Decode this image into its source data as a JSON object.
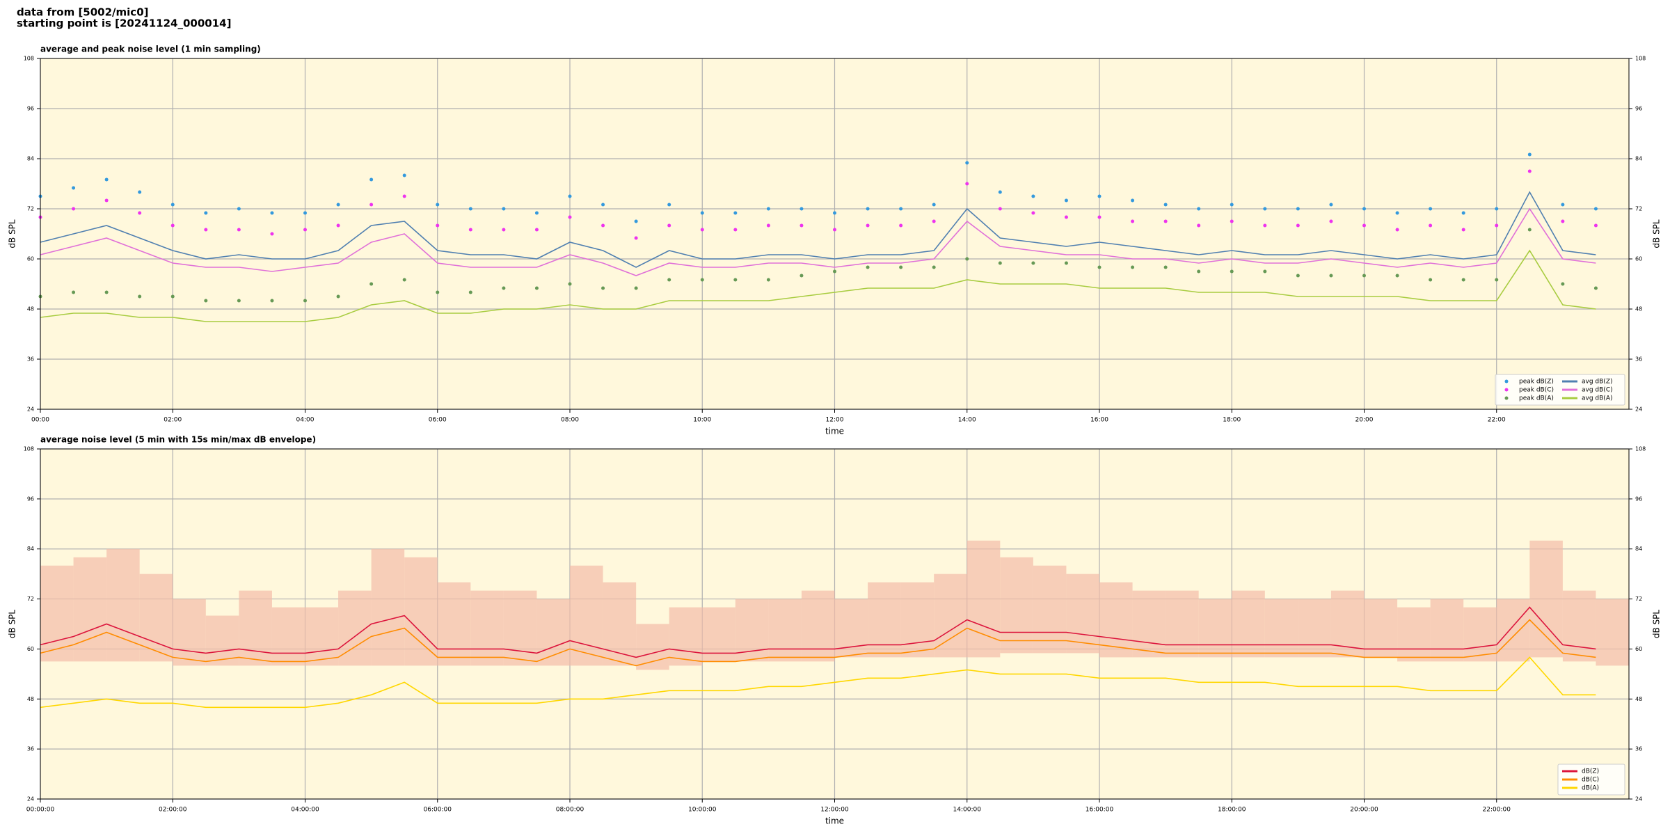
{
  "header": {
    "line1": "data from [5002/mic0]",
    "line2": "starting point is [20241124_000014]"
  },
  "chart_data": [
    {
      "type": "line",
      "title": "average and peak noise level (1 min sampling)",
      "xlabel": "time",
      "ylabel": "dB SPL",
      "background": "#fff8dc",
      "grid": true,
      "legend": "lower right",
      "legend_ncol": 2,
      "xlim": [
        0,
        24
      ],
      "ylim": [
        24,
        108
      ],
      "yticks": [
        24,
        36,
        48,
        60,
        72,
        84,
        96,
        108
      ],
      "xticks": [
        {
          "value": 0,
          "label": "00:00"
        },
        {
          "value": 2,
          "label": "02:00"
        },
        {
          "value": 4,
          "label": "04:00"
        },
        {
          "value": 6,
          "label": "06:00"
        },
        {
          "value": 8,
          "label": "08:00"
        },
        {
          "value": 10,
          "label": "10:00"
        },
        {
          "value": 12,
          "label": "12:00"
        },
        {
          "value": 14,
          "label": "14:00"
        },
        {
          "value": 16,
          "label": "16:00"
        },
        {
          "value": 18,
          "label": "18:00"
        },
        {
          "value": 20,
          "label": "20:00"
        },
        {
          "value": 22,
          "label": "22:00"
        }
      ],
      "x": [
        0,
        0.5,
        1,
        1.5,
        2,
        2.5,
        3,
        3.5,
        4,
        4.5,
        5,
        5.5,
        6,
        6.5,
        7,
        7.5,
        8,
        8.5,
        9,
        9.5,
        10,
        10.5,
        11,
        11.5,
        12,
        12.5,
        13,
        13.5,
        14,
        14.5,
        15,
        15.5,
        16,
        16.5,
        17,
        17.5,
        18,
        18.5,
        19,
        19.5,
        20,
        20.5,
        21,
        21.5,
        22,
        22.5,
        23,
        23.5
      ],
      "series": [
        {
          "name": "peak dB(Z)",
          "marker": "dot",
          "color": "#3399dd",
          "values": [
            75,
            77,
            79,
            76,
            73,
            71,
            72,
            71,
            71,
            73,
            79,
            80,
            73,
            72,
            72,
            71,
            75,
            73,
            69,
            73,
            71,
            71,
            72,
            72,
            71,
            72,
            72,
            73,
            83,
            76,
            75,
            74,
            75,
            74,
            73,
            72,
            73,
            72,
            72,
            73,
            72,
            71,
            72,
            71,
            72,
            85,
            73,
            72
          ]
        },
        {
          "name": "peak dB(C)",
          "marker": "dot",
          "color": "#ee33ee",
          "values": [
            70,
            72,
            74,
            71,
            68,
            67,
            67,
            66,
            67,
            68,
            73,
            75,
            68,
            67,
            67,
            67,
            70,
            68,
            65,
            68,
            67,
            67,
            68,
            68,
            67,
            68,
            68,
            69,
            78,
            72,
            71,
            70,
            70,
            69,
            69,
            68,
            69,
            68,
            68,
            69,
            68,
            67,
            68,
            67,
            68,
            81,
            69,
            68
          ]
        },
        {
          "name": "peak dB(A)",
          "marker": "dot",
          "color": "#669955",
          "values": [
            51,
            52,
            52,
            51,
            51,
            50,
            50,
            50,
            50,
            51,
            54,
            55,
            52,
            52,
            53,
            53,
            54,
            53,
            53,
            55,
            55,
            55,
            55,
            56,
            57,
            58,
            58,
            58,
            60,
            59,
            59,
            59,
            58,
            58,
            58,
            57,
            57,
            57,
            56,
            56,
            56,
            56,
            55,
            55,
            55,
            67,
            54,
            53
          ]
        },
        {
          "name": "avg dB(Z)",
          "marker": "line",
          "color": "#4f7fb0",
          "values": [
            64,
            66,
            68,
            65,
            62,
            60,
            61,
            60,
            60,
            62,
            68,
            69,
            62,
            61,
            61,
            60,
            64,
            62,
            58,
            62,
            60,
            60,
            61,
            61,
            60,
            61,
            61,
            62,
            72,
            65,
            64,
            63,
            64,
            63,
            62,
            61,
            62,
            61,
            61,
            62,
            61,
            60,
            61,
            60,
            61,
            76,
            62,
            61
          ]
        },
        {
          "name": "avg dB(C)",
          "marker": "line",
          "color": "#e070d8",
          "values": [
            61,
            63,
            65,
            62,
            59,
            58,
            58,
            57,
            58,
            59,
            64,
            66,
            59,
            58,
            58,
            58,
            61,
            59,
            56,
            59,
            58,
            58,
            59,
            59,
            58,
            59,
            59,
            60,
            69,
            63,
            62,
            61,
            61,
            60,
            60,
            59,
            60,
            59,
            59,
            60,
            59,
            58,
            59,
            58,
            59,
            72,
            60,
            59
          ]
        },
        {
          "name": "avg dB(A)",
          "marker": "line",
          "color": "#a8cc40",
          "values": [
            46,
            47,
            47,
            46,
            46,
            45,
            45,
            45,
            45,
            46,
            49,
            50,
            47,
            47,
            48,
            48,
            49,
            48,
            48,
            50,
            50,
            50,
            50,
            51,
            52,
            53,
            53,
            53,
            55,
            54,
            54,
            54,
            53,
            53,
            53,
            52,
            52,
            52,
            51,
            51,
            51,
            51,
            50,
            50,
            50,
            62,
            49,
            48
          ]
        }
      ]
    },
    {
      "type": "line",
      "title": "average noise level (5 min with 15s min/max dB envelope)",
      "xlabel": "time",
      "ylabel": "dB SPL",
      "background": "#fff8dc",
      "grid": true,
      "legend": "lower right",
      "legend_ncol": 1,
      "xlim": [
        0,
        24
      ],
      "ylim": [
        24,
        108
      ],
      "yticks": [
        24,
        36,
        48,
        60,
        72,
        84,
        96,
        108
      ],
      "xticks": [
        {
          "value": 0,
          "label": "00:00:00"
        },
        {
          "value": 2,
          "label": "02:00:00"
        },
        {
          "value": 4,
          "label": "04:00:00"
        },
        {
          "value": 6,
          "label": "06:00:00"
        },
        {
          "value": 8,
          "label": "08:00:00"
        },
        {
          "value": 10,
          "label": "10:00:00"
        },
        {
          "value": 12,
          "label": "12:00:00"
        },
        {
          "value": 14,
          "label": "14:00:00"
        },
        {
          "value": 16,
          "label": "16:00:00"
        },
        {
          "value": 18,
          "label": "18:00:00"
        },
        {
          "value": 20,
          "label": "20:00:00"
        },
        {
          "value": 22,
          "label": "22:00:00"
        }
      ],
      "x": [
        0,
        0.5,
        1,
        1.5,
        2,
        2.5,
        3,
        3.5,
        4,
        4.5,
        5,
        5.5,
        6,
        6.5,
        7,
        7.5,
        8,
        8.5,
        9,
        9.5,
        10,
        10.5,
        11,
        11.5,
        12,
        12.5,
        13,
        13.5,
        14,
        14.5,
        15,
        15.5,
        16,
        16.5,
        17,
        17.5,
        18,
        18.5,
        19,
        19.5,
        20,
        20.5,
        21,
        21.5,
        22,
        22.5,
        23,
        23.5
      ],
      "envelope": {
        "color": "#f4bca8",
        "min": [
          57,
          57,
          57,
          57,
          56,
          56,
          56,
          56,
          56,
          56,
          56,
          56,
          56,
          56,
          56,
          56,
          56,
          56,
          55,
          56,
          57,
          57,
          57,
          57,
          58,
          58,
          58,
          58,
          58,
          59,
          59,
          59,
          58,
          58,
          58,
          58,
          58,
          58,
          58,
          58,
          58,
          57,
          57,
          57,
          57,
          58,
          57,
          56
        ],
        "max": [
          80,
          82,
          84,
          78,
          72,
          68,
          74,
          70,
          70,
          74,
          84,
          82,
          76,
          74,
          74,
          72,
          80,
          76,
          66,
          70,
          70,
          72,
          72,
          74,
          72,
          76,
          76,
          78,
          86,
          82,
          80,
          78,
          76,
          74,
          74,
          72,
          74,
          72,
          72,
          74,
          72,
          70,
          72,
          70,
          72,
          86,
          74,
          72
        ]
      },
      "series": [
        {
          "name": "dB(Z)",
          "marker": "line",
          "color": "#dc143c",
          "values": [
            61,
            63,
            66,
            63,
            60,
            59,
            60,
            59,
            59,
            60,
            66,
            68,
            60,
            60,
            60,
            59,
            62,
            60,
            58,
            60,
            59,
            59,
            60,
            60,
            60,
            61,
            61,
            62,
            67,
            64,
            64,
            64,
            63,
            62,
            61,
            61,
            61,
            61,
            61,
            61,
            60,
            60,
            60,
            60,
            61,
            70,
            61,
            60
          ]
        },
        {
          "name": "dB(C)",
          "marker": "line",
          "color": "#ff8c00",
          "values": [
            59,
            61,
            64,
            61,
            58,
            57,
            58,
            57,
            57,
            58,
            63,
            65,
            58,
            58,
            58,
            57,
            60,
            58,
            56,
            58,
            57,
            57,
            58,
            58,
            58,
            59,
            59,
            60,
            65,
            62,
            62,
            62,
            61,
            60,
            59,
            59,
            59,
            59,
            59,
            59,
            58,
            58,
            58,
            58,
            59,
            67,
            59,
            58
          ]
        },
        {
          "name": "dB(A)",
          "marker": "line",
          "color": "#ffd700",
          "values": [
            46,
            47,
            48,
            47,
            47,
            46,
            46,
            46,
            46,
            47,
            49,
            52,
            47,
            47,
            47,
            47,
            48,
            48,
            49,
            50,
            50,
            50,
            51,
            51,
            52,
            53,
            53,
            54,
            55,
            54,
            54,
            54,
            53,
            53,
            53,
            52,
            52,
            52,
            51,
            51,
            51,
            51,
            50,
            50,
            50,
            58,
            49,
            49
          ]
        }
      ]
    }
  ]
}
